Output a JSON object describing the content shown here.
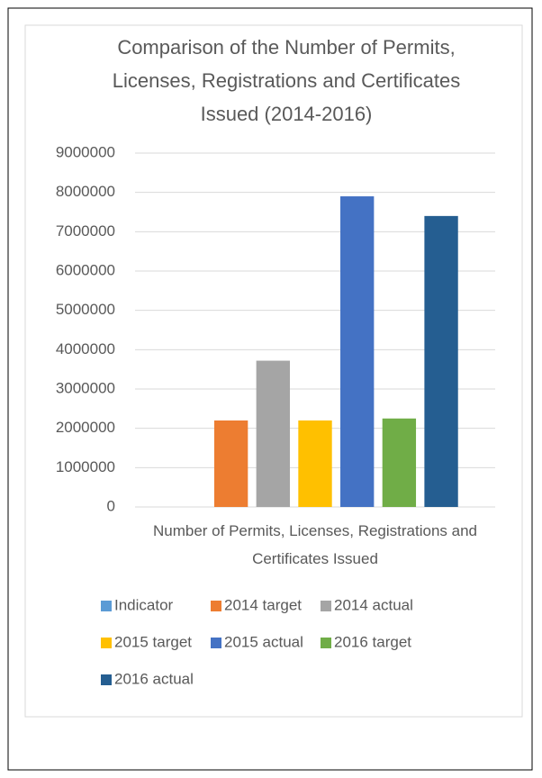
{
  "chart_data": {
    "type": "bar",
    "title": "Comparison of the Number of Permits, Licenses, Registrations and Certificates Issued (2014-2016)",
    "categories": [
      "Number of Permits, Licenses, Registrations and Certificates Issued"
    ],
    "series": [
      {
        "name": "Indicator",
        "color": "#5b9bd5",
        "values": [
          null
        ]
      },
      {
        "name": "2014 target",
        "color": "#ed7d31",
        "values": [
          2200000
        ]
      },
      {
        "name": "2014 actual",
        "color": "#a5a5a5",
        "values": [
          3720000
        ]
      },
      {
        "name": "2015 target",
        "color": "#ffc000",
        "values": [
          2200000
        ]
      },
      {
        "name": "2015 actual",
        "color": "#4472c4",
        "values": [
          7900000
        ]
      },
      {
        "name": "2016 target",
        "color": "#70ad47",
        "values": [
          2250000
        ]
      },
      {
        "name": "2016 actual",
        "color": "#255e91",
        "values": [
          7400000
        ]
      }
    ],
    "ylim": [
      0,
      9000000
    ],
    "yticks": [
      0,
      1000000,
      2000000,
      3000000,
      4000000,
      5000000,
      6000000,
      7000000,
      8000000,
      9000000
    ],
    "grid": true,
    "legend": "bottom"
  }
}
